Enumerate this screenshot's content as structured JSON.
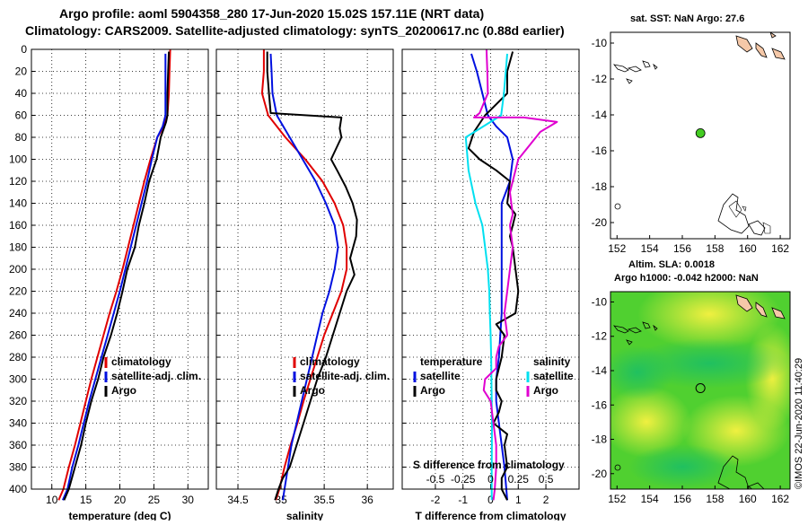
{
  "header": {
    "line1": "Argo profile: aoml 5904358_280 17-Jun-2020 15.02S 157.11E (NRT data)",
    "line2": "Climatology: CARS2009. Satellite-adjusted climatology: synTS_20200617.nc (0.88d earlier)"
  },
  "credit": "©IMOS 22-Jun-2020 11:40:29",
  "colors": {
    "climatology": "#e00000",
    "satellite": "#0010e0",
    "argo": "#000000",
    "s_sat": "#00e0f0",
    "s_argo": "#e000d0",
    "dot": "#44cc22",
    "land": "#f5c8a8"
  },
  "depth_axis": {
    "ticks": [
      "0",
      "20",
      "40",
      "60",
      "80",
      "100",
      "120",
      "140",
      "160",
      "180",
      "200",
      "220",
      "240",
      "260",
      "280",
      "300",
      "320",
      "340",
      "360",
      "380",
      "400"
    ],
    "ylim": [
      0,
      400
    ]
  },
  "chart_data": [
    {
      "type": "line",
      "panel": "temperature",
      "xlabel": "temperature (deg C)",
      "xlim": [
        7,
        33
      ],
      "xticks": [
        10,
        15,
        20,
        25,
        30
      ],
      "xticklabels": [
        "10",
        "15",
        "20",
        "25",
        "30"
      ],
      "series": [
        {
          "name": "climatology",
          "color": "#e00000",
          "x": [
            27.4,
            27.3,
            27.2,
            27.0,
            26.5,
            25.5,
            24.5,
            23.6,
            22.8,
            22.0,
            21.2,
            20.4,
            19.5,
            18.5,
            17.6,
            16.7,
            15.8,
            15.0,
            14.2,
            13.4,
            12.5,
            11.7,
            11.0
          ],
          "depth": [
            0,
            20,
            40,
            60,
            70,
            80,
            100,
            120,
            140,
            160,
            180,
            200,
            220,
            240,
            260,
            280,
            300,
            320,
            340,
            360,
            380,
            400,
            410
          ]
        },
        {
          "name": "satellite-adj. clim.",
          "color": "#0010e0",
          "x": [
            26.7,
            26.7,
            26.7,
            26.7,
            26.3,
            25.5,
            24.7,
            24.0,
            23.2,
            22.4,
            21.6,
            20.8,
            20.0,
            19.1,
            18.2,
            17.3,
            16.4,
            15.5,
            14.7,
            13.9,
            13.0,
            12.3,
            11.6
          ],
          "depth": [
            4,
            20,
            40,
            60,
            70,
            80,
            100,
            120,
            140,
            160,
            180,
            200,
            220,
            240,
            260,
            280,
            300,
            320,
            340,
            360,
            380,
            400,
            410
          ]
        },
        {
          "name": "Argo",
          "color": "#000000",
          "x": [
            27.2,
            27.1,
            27.0,
            27.0,
            26.8,
            26.0,
            25.4,
            24.3,
            23.6,
            22.8,
            22.2,
            21.1,
            20.4,
            19.6,
            18.7,
            17.6,
            16.8,
            15.8,
            15.0,
            14.3,
            13.4,
            12.5,
            11.8
          ],
          "depth": [
            2,
            20,
            40,
            60,
            66,
            80,
            100,
            120,
            140,
            160,
            180,
            200,
            220,
            240,
            260,
            280,
            300,
            320,
            340,
            360,
            380,
            400,
            410
          ]
        }
      ],
      "legend": [
        "climatology",
        "satellite-adj. clim.",
        "Argo"
      ]
    },
    {
      "type": "line",
      "panel": "salinity",
      "xlabel": "salinity",
      "xlim": [
        34.25,
        36.3
      ],
      "xticks": [
        34.5,
        35,
        35.5,
        36
      ],
      "xticklabels": [
        "34.5",
        "35",
        "35.5",
        "36"
      ],
      "series": [
        {
          "name": "climatology",
          "color": "#e00000",
          "x": [
            34.8,
            34.8,
            34.78,
            34.85,
            35.05,
            35.28,
            35.48,
            35.62,
            35.72,
            35.76,
            35.76,
            35.7,
            35.6,
            35.5,
            35.42,
            35.34,
            35.26,
            35.19,
            35.11,
            35.04,
            34.98,
            34.94
          ],
          "depth": [
            0,
            20,
            40,
            60,
            80,
            100,
            120,
            140,
            160,
            180,
            200,
            220,
            240,
            260,
            280,
            300,
            320,
            340,
            360,
            380,
            400,
            410
          ]
        },
        {
          "name": "satellite-adj. clim.",
          "color": "#0010e0",
          "x": [
            34.88,
            34.89,
            34.9,
            34.95,
            35.1,
            35.25,
            35.4,
            35.52,
            35.62,
            35.66,
            35.62,
            35.56,
            35.48,
            35.42,
            35.36,
            35.3,
            35.24,
            35.18,
            35.12,
            35.08,
            35.04,
            35.02
          ],
          "depth": [
            4,
            20,
            40,
            60,
            80,
            100,
            120,
            140,
            160,
            180,
            200,
            220,
            240,
            260,
            280,
            300,
            320,
            340,
            360,
            380,
            400,
            410
          ]
        },
        {
          "name": "Argo",
          "color": "#000000",
          "x": [
            34.84,
            34.84,
            34.86,
            34.88,
            35.7,
            35.68,
            35.7,
            35.58,
            35.65,
            35.75,
            35.83,
            35.88,
            35.87,
            35.8,
            35.85,
            35.76,
            35.68,
            35.6,
            35.52,
            35.42,
            35.34,
            35.26,
            35.18,
            35.1,
            35.02,
            34.97,
            34.93
          ],
          "depth": [
            2,
            20,
            40,
            58,
            62,
            72,
            80,
            100,
            110,
            125,
            140,
            155,
            170,
            190,
            205,
            220,
            240,
            260,
            280,
            300,
            320,
            340,
            360,
            380,
            390,
            400,
            410
          ]
        }
      ],
      "legend": [
        "climatology",
        "satellite-adj. clim.",
        "Argo"
      ]
    },
    {
      "type": "line",
      "panel": "difference",
      "xlabel": "T difference from climatology",
      "xlim": [
        -3.2,
        3.2
      ],
      "xticks": [
        -2,
        -1,
        0,
        1,
        2
      ],
      "xticklabels": [
        "-2",
        "-1",
        "0",
        "1",
        "2"
      ],
      "top_axis_label": "S difference from climatology",
      "s_ticks": [
        -0.5,
        -0.25,
        0,
        0.25,
        0.5
      ],
      "s_ticklabels": [
        "-0.5",
        "-0.25",
        "0",
        "0.25",
        "0.5"
      ],
      "s_scale": 4,
      "series": [
        {
          "name": "T satellite",
          "color": "#0010e0",
          "x": [
            -0.7,
            -0.5,
            -0.3,
            -0.1,
            0.2,
            0.6,
            0.8,
            0.7,
            0.4,
            0.4,
            0.4,
            0.4,
            0.3,
            0.2,
            0.2,
            0.3,
            0.4,
            0.5,
            0.6
          ],
          "depth": [
            4,
            20,
            40,
            60,
            70,
            80,
            100,
            120,
            140,
            160,
            200,
            240,
            280,
            300,
            320,
            340,
            360,
            380,
            410
          ]
        },
        {
          "name": "T Argo",
          "color": "#000000",
          "x": [
            0.8,
            0.6,
            0.6,
            0.0,
            -0.2,
            -0.6,
            -0.8,
            -0.4,
            0.2,
            0.7,
            0.6,
            0.9,
            0.7,
            0.8,
            0.9,
            1.0,
            0.9,
            0.2,
            0.5,
            0.4,
            0.2,
            0.2,
            0.4,
            0.3,
            0.1,
            0.6,
            0.5,
            0.6,
            0.4,
            0.4,
            0.6
          ],
          "depth": [
            2,
            20,
            40,
            55,
            60,
            75,
            90,
            100,
            110,
            120,
            140,
            150,
            170,
            180,
            200,
            220,
            240,
            250,
            260,
            280,
            300,
            310,
            320,
            330,
            340,
            350,
            360,
            380,
            390,
            400,
            410
          ]
        },
        {
          "name": "S satellite",
          "color": "#00e0f0",
          "x": [
            0.6,
            0.55,
            0.48,
            0.38,
            -0.9,
            -0.8,
            -0.55,
            -0.3,
            -0.1,
            -0.05,
            -0.03,
            0.0,
            0.02,
            0.03,
            0.05,
            0.04,
            0.04
          ],
          "depth": [
            4,
            20,
            40,
            60,
            80,
            110,
            140,
            160,
            200,
            220,
            240,
            260,
            280,
            300,
            340,
            380,
            410
          ]
        },
        {
          "name": "S Argo",
          "color": "#e000d0",
          "x": [
            -0.15,
            -0.12,
            -0.1,
            -0.4,
            -0.6,
            1.2,
            2.4,
            1.8,
            1.0,
            0.7,
            0.8,
            0.7,
            0.8,
            0.7,
            0.6,
            0.5,
            0.6,
            0.3,
            0.2,
            0.2,
            -0.2,
            -0.25,
            0.0,
            0.1,
            0.2,
            0.2,
            0.15,
            0.1
          ],
          "depth": [
            0,
            20,
            40,
            58,
            62,
            62,
            66,
            75,
            100,
            130,
            150,
            160,
            180,
            200,
            220,
            240,
            260,
            270,
            280,
            290,
            300,
            310,
            320,
            340,
            360,
            380,
            400,
            410
          ]
        }
      ],
      "legend": {
        "temperature_title": "temperature",
        "salinity_title": "salinity",
        "satellite": "satellite",
        "argo": "Argo"
      }
    }
  ],
  "map_sst": {
    "label": "sat. SST: NaN Argo: 27.6",
    "xticks": [
      "152",
      "154",
      "156",
      "158",
      "160",
      "162"
    ],
    "yticks": [
      "-10",
      "-12",
      "-14",
      "-16",
      "-18",
      "-20"
    ],
    "xlim": [
      151.6,
      162.6
    ],
    "ylim": [
      -20.9,
      -9.4
    ],
    "argo_position": [
      157.11,
      -15.02
    ]
  },
  "map_sla": {
    "label1": "Altim. SLA: 0.0018",
    "label2": "Argo h1000: -0.042 h2000: NaN",
    "xticks": [
      "152",
      "154",
      "156",
      "158",
      "160",
      "162"
    ],
    "yticks": [
      "-10",
      "-12",
      "-14",
      "-16",
      "-18",
      "-20"
    ],
    "xlim": [
      151.6,
      162.6
    ],
    "ylim": [
      -20.9,
      -9.4
    ],
    "argo_position": [
      157.11,
      -15.02
    ]
  }
}
